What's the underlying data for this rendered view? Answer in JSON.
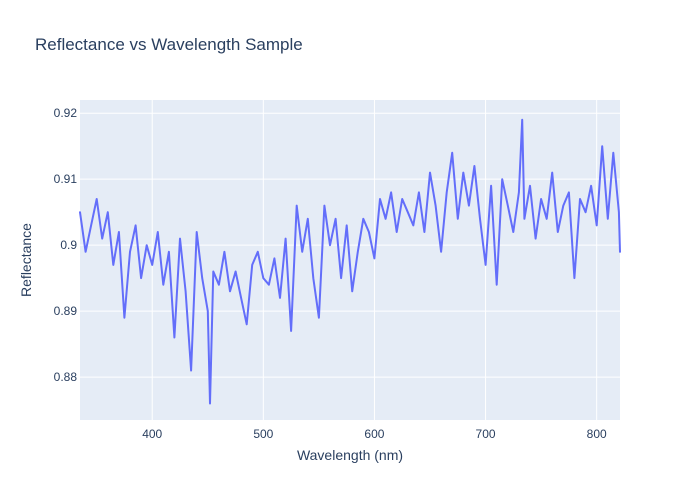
{
  "chart_data": {
    "type": "line",
    "title": "Reflectance vs Wavelength Sample",
    "xlabel": "Wavelength (nm)",
    "ylabel": "Reflectance",
    "xlim": [
      335,
      821
    ],
    "ylim": [
      0.8735,
      0.922
    ],
    "grid": true,
    "legend": "none",
    "x_ticks": [
      400,
      500,
      600,
      700,
      800
    ],
    "y_ticks": [
      0.88,
      0.89,
      0.9,
      0.91,
      0.92
    ],
    "x_tick_labels": [
      "400",
      "500",
      "600",
      "700",
      "800"
    ],
    "y_tick_labels": [
      "0.88",
      "0.89",
      "0.9",
      "0.91",
      "0.92"
    ],
    "colors": {
      "line": "#636efa",
      "plot_bg": "#e5ecf6",
      "grid": "#ffffff",
      "text": "#2a3f5f"
    },
    "series": [
      {
        "x": [
          335,
          340,
          345,
          350,
          355,
          360,
          365,
          370,
          375,
          380,
          385,
          390,
          395,
          400,
          405,
          410,
          415,
          420,
          425,
          430,
          435,
          440,
          445,
          450,
          452,
          455,
          460,
          465,
          470,
          475,
          480,
          485,
          490,
          495,
          500,
          505,
          510,
          515,
          520,
          525,
          530,
          535,
          540,
          545,
          550,
          555,
          560,
          565,
          570,
          575,
          580,
          585,
          590,
          595,
          600,
          605,
          610,
          615,
          620,
          625,
          630,
          635,
          640,
          645,
          650,
          655,
          660,
          665,
          670,
          675,
          680,
          685,
          690,
          695,
          700,
          705,
          710,
          715,
          720,
          725,
          730,
          733,
          735,
          740,
          745,
          750,
          755,
          760,
          765,
          770,
          775,
          780,
          785,
          790,
          795,
          800,
          805,
          810,
          815,
          820,
          821
        ],
        "y": [
          0.905,
          0.899,
          0.903,
          0.907,
          0.901,
          0.905,
          0.897,
          0.902,
          0.889,
          0.899,
          0.903,
          0.895,
          0.9,
          0.897,
          0.902,
          0.894,
          0.899,
          0.886,
          0.901,
          0.893,
          0.881,
          0.902,
          0.895,
          0.89,
          0.876,
          0.896,
          0.894,
          0.899,
          0.893,
          0.896,
          0.892,
          0.888,
          0.897,
          0.899,
          0.895,
          0.894,
          0.898,
          0.892,
          0.901,
          0.887,
          0.906,
          0.899,
          0.904,
          0.895,
          0.889,
          0.906,
          0.9,
          0.904,
          0.895,
          0.903,
          0.893,
          0.899,
          0.904,
          0.902,
          0.898,
          0.907,
          0.904,
          0.908,
          0.902,
          0.907,
          0.905,
          0.903,
          0.908,
          0.902,
          0.911,
          0.906,
          0.899,
          0.908,
          0.914,
          0.904,
          0.911,
          0.906,
          0.912,
          0.904,
          0.897,
          0.909,
          0.894,
          0.91,
          0.906,
          0.902,
          0.908,
          0.919,
          0.904,
          0.909,
          0.901,
          0.907,
          0.904,
          0.911,
          0.902,
          0.906,
          0.908,
          0.895,
          0.907,
          0.905,
          0.909,
          0.903,
          0.915,
          0.904,
          0.914,
          0.905,
          0.899
        ]
      }
    ]
  }
}
